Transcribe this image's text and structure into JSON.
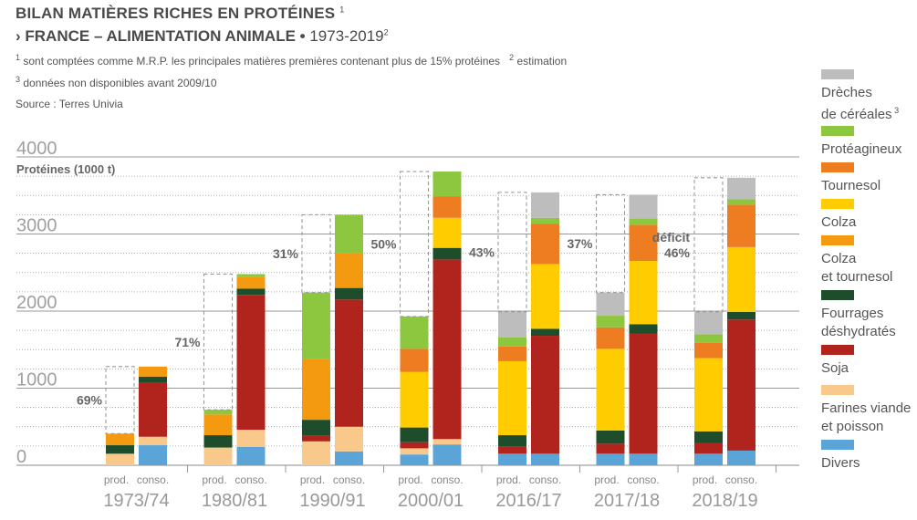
{
  "header": {
    "title": "BILAN MATIÈRES RICHES EN PROTÉINES",
    "title_sup": "1",
    "subtitle_bold": "› FRANCE – ALIMENTATION ANIMALE •",
    "subtitle_light": "1973-2019",
    "subtitle_sup": "2",
    "note1_sup1": "1",
    "note1_a": "sont comptées comme M.R.P. les principales matières premières contenant plus de 15% protéines",
    "note1_sup2": "2",
    "note1_b": "estimation",
    "note2_sup": "3",
    "note2": "données non disponibles avant 2009/10",
    "source": "Source : Terres Univia"
  },
  "colors": {
    "Drèches de céréales": "#bdbdbd",
    "Protéagineux": "#8dc63f",
    "Tournesol": "#ee7d22",
    "Colza": "#ffcc00",
    "Colza et tournesol": "#f39a10",
    "Fourrages déshydratés": "#1e4d2b",
    "Soja": "#b0241d",
    "Farines viande et poisson": "#f8c98b",
    "Divers": "#5aa4d8",
    "gridline": "#999999",
    "deficit_border": "#9a9a9a",
    "text_gray": "#555555"
  },
  "legend": [
    {
      "name": "Drèches de céréales",
      "lines": [
        "Drèches",
        "de céréales"
      ],
      "sup": "3"
    },
    {
      "name": "Protéagineux",
      "lines": [
        "Protéagineux"
      ]
    },
    {
      "name": "Tournesol",
      "lines": [
        "Tournesol"
      ]
    },
    {
      "name": "Colza",
      "lines": [
        "Colza"
      ]
    },
    {
      "name": "Colza et tournesol",
      "lines": [
        "Colza",
        "et tournesol"
      ]
    },
    {
      "name": "Fourrages déshydratés",
      "lines": [
        "Fourrages",
        "déshydratés"
      ]
    },
    {
      "name": "Soja",
      "lines": [
        "Soja"
      ]
    },
    {
      "name": "Farines viande et poisson",
      "lines": [
        "Farines viande",
        "et poisson"
      ]
    },
    {
      "name": "Divers",
      "lines": [
        "Divers"
      ]
    }
  ],
  "chart_data": {
    "type": "bar",
    "stacked": true,
    "ylabel": "Protéines (1000 t)",
    "ylim": [
      0,
      4000
    ],
    "yticks": [
      0,
      1000,
      2000,
      3000,
      4000
    ],
    "categories": [
      "1973/74",
      "1980/81",
      "1990/91",
      "2000/01",
      "2016/17",
      "2017/18",
      "2018/19"
    ],
    "bar_labels": [
      "prod.",
      "conso."
    ],
    "stack_order": [
      "Divers",
      "Farines viande et poisson",
      "Soja",
      "Fourrages déshydratés",
      "Colza et tournesol",
      "Colza",
      "Tournesol",
      "Protéagineux",
      "Drèches de céréales"
    ],
    "groups": [
      {
        "year": "1973/74",
        "deficit_label": [
          "69%"
        ],
        "prod": {
          "Divers": 0,
          "Farines viande et poisson": 150,
          "Soja": 0,
          "Fourrages déshydratés": 110,
          "Colza et tournesol": 150
        },
        "conso": {
          "Divers": 260,
          "Farines viande et poisson": 110,
          "Soja": 700,
          "Fourrages déshydratés": 80,
          "Colza et tournesol": 130
        }
      },
      {
        "year": "1980/81",
        "deficit_label": [
          "71%"
        ],
        "prod": {
          "Divers": 0,
          "Farines viande et poisson": 230,
          "Soja": 0,
          "Fourrages déshydratés": 160,
          "Colza et tournesol": 270,
          "Protéagineux": 60
        },
        "conso": {
          "Divers": 240,
          "Farines viande et poisson": 220,
          "Soja": 1750,
          "Fourrages déshydratés": 80,
          "Colza et tournesol": 150,
          "Protéagineux": 40
        }
      },
      {
        "year": "1990/91",
        "deficit_label": [
          "31%"
        ],
        "prod": {
          "Divers": 0,
          "Farines viande et poisson": 310,
          "Soja": 80,
          "Fourrages déshydratés": 200,
          "Colza et tournesol": 790,
          "Protéagineux": 860
        },
        "conso": {
          "Divers": 180,
          "Farines viande et poisson": 320,
          "Soja": 1650,
          "Fourrages déshydratés": 150,
          "Colza et tournesol": 450,
          "Protéagineux": 500
        }
      },
      {
        "year": "2000/01",
        "deficit_label": [
          "50%"
        ],
        "prod": {
          "Divers": 140,
          "Farines viande et poisson": 80,
          "Soja": 80,
          "Fourrages déshydratés": 190,
          "Colza": 720,
          "Tournesol": 300,
          "Protéagineux": 420
        },
        "conso": {
          "Divers": 270,
          "Farines viande et poisson": 70,
          "Soja": 2330,
          "Fourrages déshydratés": 150,
          "Colza": 390,
          "Tournesol": 280,
          "Protéagineux": 320
        }
      },
      {
        "year": "2016/17",
        "deficit_label": [
          "43%"
        ],
        "prod": {
          "Divers": 150,
          "Farines viande et poisson": 0,
          "Soja": 90,
          "Fourrages déshydratés": 150,
          "Colza": 960,
          "Tournesol": 190,
          "Protéagineux": 120,
          "Drèches de céréales": 330
        },
        "conso": {
          "Divers": 150,
          "Farines viande et poisson": 0,
          "Soja": 1530,
          "Fourrages déshydratés": 90,
          "Colza": 840,
          "Tournesol": 520,
          "Protéagineux": 80,
          "Drèches de céréales": 330
        }
      },
      {
        "year": "2017/18",
        "deficit_label": [
          "37%"
        ],
        "prod": {
          "Divers": 150,
          "Farines viande et poisson": 0,
          "Soja": 130,
          "Fourrages déshydratés": 170,
          "Colza": 1060,
          "Tournesol": 280,
          "Protéagineux": 150,
          "Drèches de céréales": 300
        },
        "conso": {
          "Divers": 150,
          "Farines viande et poisson": 0,
          "Soja": 1560,
          "Fourrages déshydratés": 120,
          "Colza": 820,
          "Tournesol": 470,
          "Protéagineux": 80,
          "Drèches de céréales": 310
        }
      },
      {
        "year": "2018/19",
        "deficit_label": [
          "déficit",
          "46%"
        ],
        "prod": {
          "Divers": 150,
          "Farines viande et poisson": 0,
          "Soja": 140,
          "Fourrages déshydratés": 150,
          "Colza": 950,
          "Tournesol": 200,
          "Protéagineux": 110,
          "Drèches de céréales": 290
        },
        "conso": {
          "Divers": 190,
          "Farines viande et poisson": 0,
          "Soja": 1700,
          "Fourrages déshydratés": 100,
          "Colza": 840,
          "Tournesol": 550,
          "Protéagineux": 70,
          "Drèches de céréales": 280
        }
      }
    ]
  }
}
